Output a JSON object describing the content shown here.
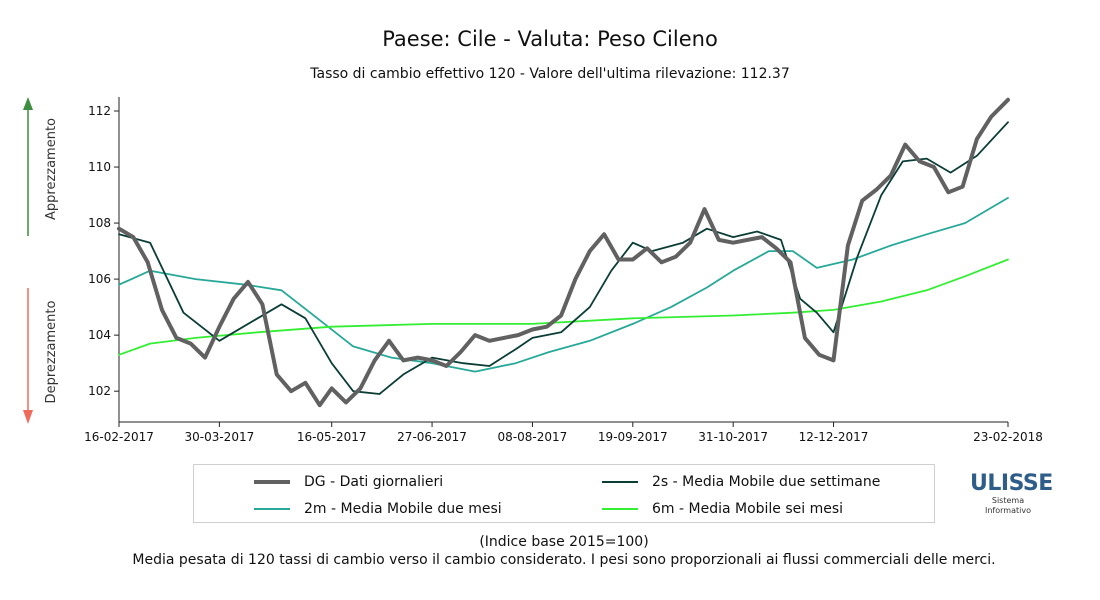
{
  "chart_data": {
    "type": "line",
    "title": "Paese: Cile - Valuta: Peso Cileno",
    "subtitle": "Tasso di cambio effettivo 120 - Valore dell'ultima rilevazione: 112.37",
    "ylabel_up": "Apprezzamento",
    "ylabel_down": "Deprezzamento",
    "ylim": [
      100.9,
      112.5
    ],
    "yticks": [
      102,
      104,
      106,
      108,
      110,
      112
    ],
    "x_range": [
      "16-02-2017",
      "23-02-2018"
    ],
    "xticks": [
      "16-02-2017",
      "30-03-2017",
      "16-05-2017",
      "27-06-2017",
      "08-08-2017",
      "19-09-2017",
      "31-10-2017",
      "12-12-2017",
      "23-02-2018"
    ],
    "grid": false,
    "legend": "bottom",
    "series": [
      {
        "name": "DG - Dati giornalieri",
        "color": "#616161",
        "x": [
          "2017-02-16",
          "2017-02-22",
          "2017-02-28",
          "2017-03-06",
          "2017-03-12",
          "2017-03-18",
          "2017-03-24",
          "2017-03-30",
          "2017-04-05",
          "2017-04-11",
          "2017-04-17",
          "2017-04-23",
          "2017-04-29",
          "2017-05-05",
          "2017-05-11",
          "2017-05-16",
          "2017-05-22",
          "2017-05-28",
          "2017-06-03",
          "2017-06-09",
          "2017-06-15",
          "2017-06-21",
          "2017-06-27",
          "2017-07-03",
          "2017-07-09",
          "2017-07-15",
          "2017-07-21",
          "2017-07-27",
          "2017-08-02",
          "2017-08-08",
          "2017-08-14",
          "2017-08-20",
          "2017-08-26",
          "2017-09-01",
          "2017-09-07",
          "2017-09-13",
          "2017-09-19",
          "2017-09-25",
          "2017-10-01",
          "2017-10-07",
          "2017-10-13",
          "2017-10-19",
          "2017-10-25",
          "2017-10-31",
          "2017-11-06",
          "2017-11-12",
          "2017-11-18",
          "2017-11-24",
          "2017-11-30",
          "2017-12-06",
          "2017-12-12",
          "2017-12-18",
          "2017-12-24",
          "2017-12-30",
          "2018-01-05",
          "2018-01-11",
          "2018-01-17",
          "2018-01-23",
          "2018-01-29",
          "2018-02-04",
          "2018-02-10",
          "2018-02-16",
          "2018-02-23"
        ],
        "values": [
          107.8,
          107.5,
          106.6,
          104.9,
          103.9,
          103.7,
          103.2,
          104.3,
          105.3,
          105.9,
          105.1,
          102.6,
          102.0,
          102.3,
          101.5,
          102.1,
          101.6,
          102.1,
          103.1,
          103.8,
          103.1,
          103.2,
          103.1,
          102.9,
          103.4,
          104.0,
          103.8,
          103.9,
          104.0,
          104.2,
          104.3,
          104.7,
          106.0,
          107.0,
          107.6,
          106.7,
          106.7,
          107.1,
          106.6,
          106.8,
          107.3,
          108.5,
          107.4,
          107.3,
          107.4,
          107.5,
          107.1,
          106.6,
          103.9,
          103.3,
          103.1,
          107.2,
          108.8,
          109.2,
          109.7,
          110.8,
          110.2,
          110.0,
          109.1,
          109.3,
          111.0,
          111.8,
          112.4
        ]
      },
      {
        "name": "2s - Media Mobile due settimane",
        "color": "#0b3d37",
        "x": [
          "2017-02-16",
          "2017-03-01",
          "2017-03-15",
          "2017-03-30",
          "2017-04-15",
          "2017-04-25",
          "2017-05-05",
          "2017-05-16",
          "2017-05-25",
          "2017-06-05",
          "2017-06-15",
          "2017-06-27",
          "2017-07-10",
          "2017-07-21",
          "2017-08-01",
          "2017-08-08",
          "2017-08-20",
          "2017-09-01",
          "2017-09-10",
          "2017-09-19",
          "2017-09-27",
          "2017-10-10",
          "2017-10-20",
          "2017-10-31",
          "2017-11-10",
          "2017-11-20",
          "2017-11-28",
          "2017-12-05",
          "2017-12-12",
          "2017-12-22",
          "2018-01-01",
          "2018-01-10",
          "2018-01-20",
          "2018-01-30",
          "2018-02-10",
          "2018-02-23"
        ],
        "values": [
          107.6,
          107.3,
          104.8,
          103.8,
          104.6,
          105.1,
          104.6,
          103.0,
          102.0,
          101.9,
          102.6,
          103.2,
          103.0,
          102.9,
          103.5,
          103.9,
          104.1,
          105.0,
          106.3,
          107.3,
          107.0,
          107.3,
          107.8,
          107.5,
          107.7,
          107.4,
          105.3,
          104.8,
          104.1,
          106.8,
          109.0,
          110.2,
          110.3,
          109.8,
          110.4,
          111.6
        ]
      },
      {
        "name": "2m - Media Mobile due mesi",
        "color": "#27a898",
        "x": [
          "2017-02-16",
          "2017-03-01",
          "2017-03-20",
          "2017-04-10",
          "2017-04-25",
          "2017-05-10",
          "2017-05-25",
          "2017-06-10",
          "2017-06-27",
          "2017-07-15",
          "2017-08-01",
          "2017-08-15",
          "2017-09-01",
          "2017-09-19",
          "2017-10-05",
          "2017-10-20",
          "2017-10-31",
          "2017-11-15",
          "2017-11-25",
          "2017-12-05",
          "2017-12-20",
          "2018-01-05",
          "2018-01-20",
          "2018-02-05",
          "2018-02-23"
        ],
        "values": [
          105.8,
          106.3,
          106.0,
          105.8,
          105.6,
          104.6,
          103.6,
          103.2,
          103.0,
          102.7,
          103.0,
          103.4,
          103.8,
          104.4,
          105.0,
          105.7,
          106.3,
          107.0,
          107.0,
          106.4,
          106.7,
          107.2,
          107.6,
          108.0,
          108.9
        ]
      },
      {
        "name": "6m - Media Mobile sei mesi",
        "color": "#33ee33",
        "x": [
          "2017-02-16",
          "2017-03-01",
          "2017-03-20",
          "2017-04-15",
          "2017-05-16",
          "2017-06-27",
          "2017-08-08",
          "2017-09-19",
          "2017-10-31",
          "2017-11-25",
          "2017-12-12",
          "2018-01-01",
          "2018-01-20",
          "2018-02-05",
          "2018-02-23"
        ],
        "values": [
          103.3,
          103.7,
          103.9,
          104.1,
          104.3,
          104.4,
          104.4,
          104.6,
          104.7,
          104.8,
          104.9,
          105.2,
          105.6,
          106.1,
          106.7
        ]
      }
    ]
  },
  "legend": {
    "daily": "DG - Dati giornalieri",
    "two_weeks": "2s - Media Mobile due settimane",
    "two_months": "2m - Media Mobile due mesi",
    "six_months": "6m - Media Mobile sei mesi"
  },
  "footer": {
    "base": "(Indice base 2015=100)",
    "note": "Media pesata di 120 tassi di cambio verso il cambio considerato. I pesi sono proporzionali ai flussi commerciali delle merci."
  },
  "logo": {
    "name": "ULISSE",
    "line1": "Sistema",
    "line2": "Informativo"
  },
  "colors": {
    "arrow_up": "#3e8e41",
    "arrow_down": "#f06a5a"
  }
}
